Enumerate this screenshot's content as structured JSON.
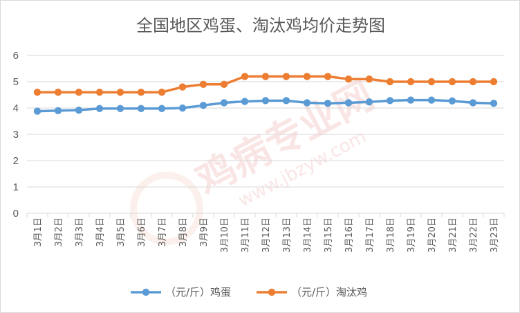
{
  "chart_data": {
    "type": "line",
    "title": "全国地区鸡蛋、淘汰鸡均价走势图",
    "categories": [
      "3月1日",
      "3月2日",
      "3月3日",
      "3月4日",
      "3月5日",
      "3月6日",
      "3月7日",
      "3月8日",
      "3月9日",
      "3月10日",
      "3月11日",
      "3月12日",
      "3月13日",
      "3月14日",
      "3月15日",
      "3月16日",
      "3月17日",
      "3月18日",
      "3月19日",
      "3月20日",
      "3月21日",
      "3月22日",
      "3月23日"
    ],
    "series": [
      {
        "name": "（元/斤）鸡蛋",
        "color": "#5b9bd5",
        "values": [
          3.88,
          3.9,
          3.92,
          3.98,
          3.98,
          3.98,
          3.98,
          4.0,
          4.1,
          4.2,
          4.25,
          4.28,
          4.28,
          4.2,
          4.18,
          4.2,
          4.23,
          4.28,
          4.3,
          4.3,
          4.27,
          4.2,
          4.18
        ]
      },
      {
        "name": "（元/斤）淘汰鸡",
        "color": "#ed7d31",
        "values": [
          4.6,
          4.6,
          4.6,
          4.6,
          4.6,
          4.6,
          4.6,
          4.8,
          4.9,
          4.9,
          5.2,
          5.2,
          5.2,
          5.2,
          5.2,
          5.1,
          5.1,
          5.0,
          5.0,
          5.0,
          5.0,
          5.0,
          5.0
        ]
      }
    ],
    "yticks": [
      "0",
      "1",
      "2",
      "3",
      "4",
      "5",
      "6"
    ],
    "ylim": [
      0,
      6
    ],
    "grid": true,
    "legend_position": "bottom",
    "watermark": {
      "main": "鸡病专业网",
      "url": "www.jbzyw.com"
    }
  }
}
